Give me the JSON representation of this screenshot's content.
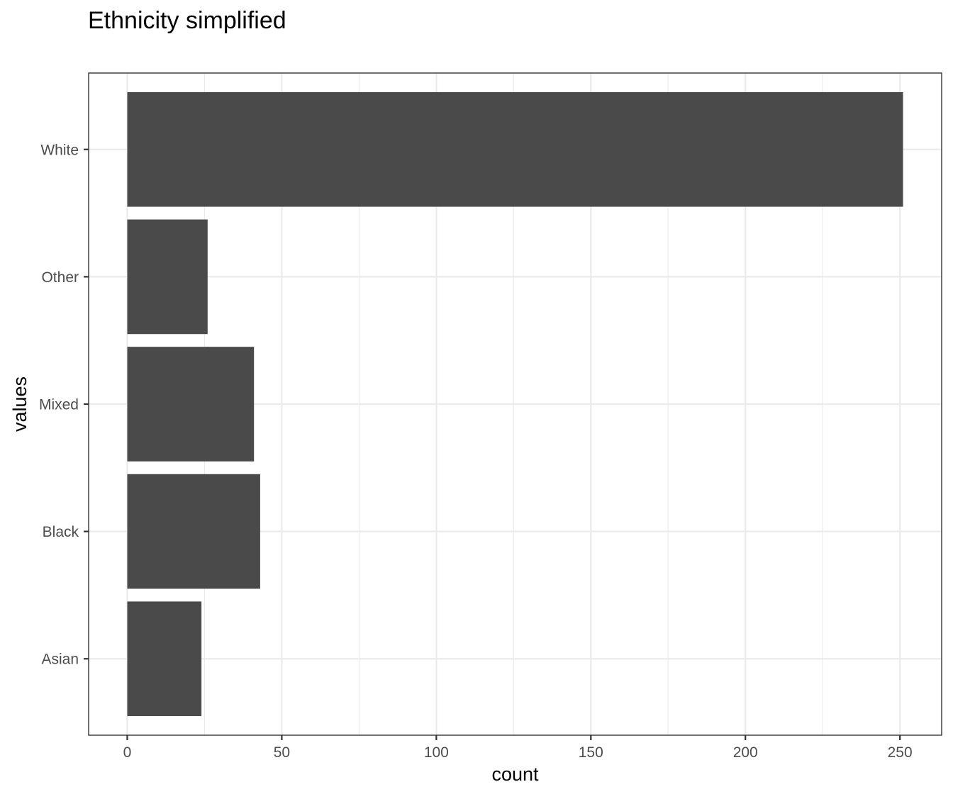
{
  "chart_data": {
    "type": "bar",
    "orientation": "horizontal",
    "title": "Ethnicity simplified",
    "xlabel": "count",
    "ylabel": "values",
    "categories": [
      "Asian",
      "Black",
      "Mixed",
      "Other",
      "White"
    ],
    "values": [
      24,
      43,
      41,
      26,
      251
    ],
    "xlim": [
      -12.5,
      263.5
    ],
    "x_ticks": [
      0,
      50,
      100,
      150,
      200,
      250
    ],
    "x_tick_labels": [
      "0",
      "50",
      "100",
      "150",
      "200",
      "250"
    ],
    "grid": true,
    "legend": "none",
    "bar_color": "#4a4a4a",
    "grid_color": "#ebebeb",
    "panel_border_color": "#333333"
  }
}
